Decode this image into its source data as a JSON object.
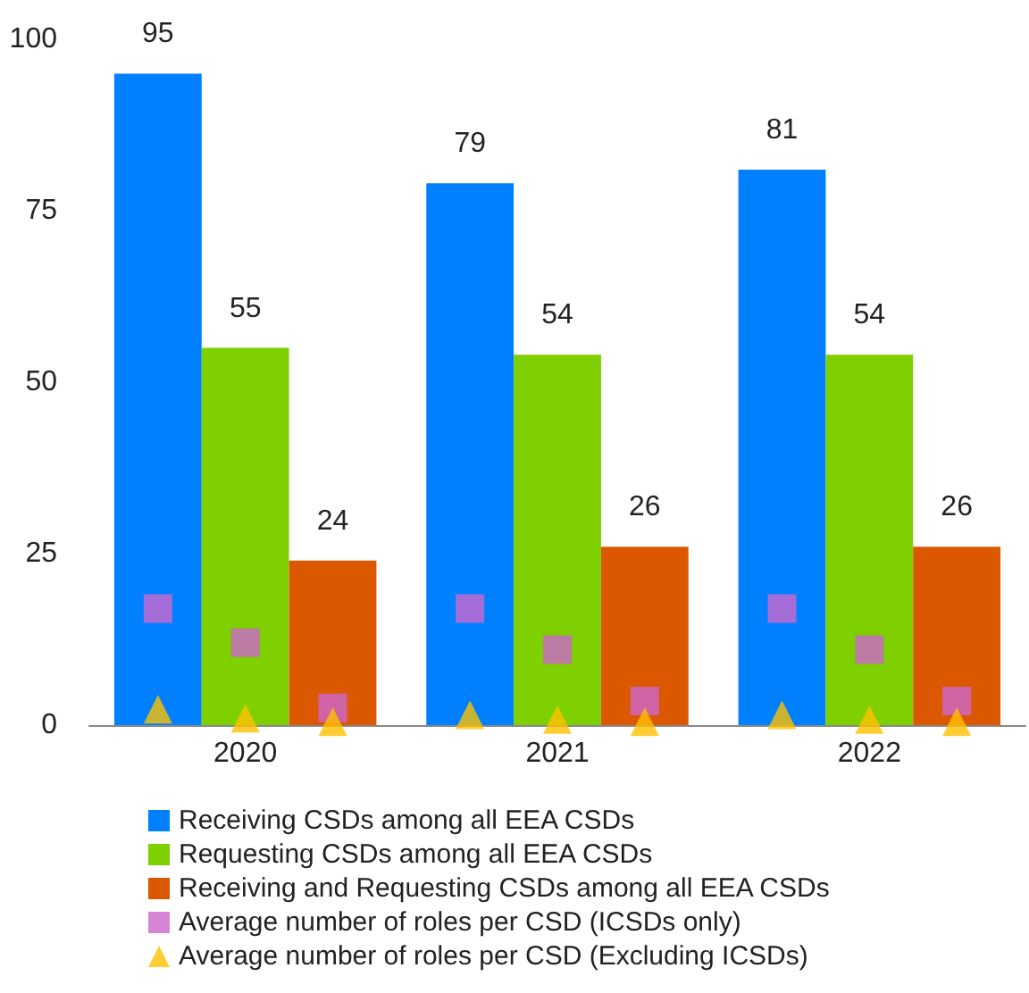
{
  "chart_data": {
    "type": "bar",
    "categories": [
      "2020",
      "2021",
      "2022"
    ],
    "series": [
      {
        "name": "Receiving CSDs among all EEA CSDs",
        "color": "#0080ff",
        "values": [
          95,
          79,
          81
        ],
        "value_labels": [
          "95",
          "79",
          "81"
        ]
      },
      {
        "name": "Requesting CSDs among all EEA CSDs",
        "color": "#7ed000",
        "values": [
          55,
          54,
          54
        ],
        "value_labels": [
          "55",
          "54",
          "54"
        ]
      },
      {
        "name": "Receiving and Requesting CSDs among all EEA CSDs",
        "color": "#dc5800",
        "values": [
          24,
          26,
          26
        ],
        "value_labels": [
          "24",
          "26",
          "26"
        ]
      },
      {
        "name": "Average number of roles per CSD (ICSDs only)",
        "type": "scatter",
        "marker": "square",
        "color": "#cc66cc",
        "values": [
          17,
          17,
          17
        ]
      },
      {
        "type": "scatter",
        "marker": "square",
        "color": "#cc66cc",
        "values": [
          12,
          11,
          11
        ]
      },
      {
        "type": "scatter",
        "marker": "square",
        "color": "#cc66cc",
        "values": [
          2.5,
          3.5,
          3.5
        ]
      },
      {
        "name": "Average number of roles per CSD (Excluding ICSDs)",
        "type": "scatter",
        "marker": "triangle",
        "color": "#ffc000",
        "values": [
          2.3,
          1.5,
          1.5
        ]
      },
      {
        "type": "scatter",
        "marker": "triangle",
        "color": "#ffc000",
        "values": [
          1,
          0.8,
          0.8
        ]
      },
      {
        "type": "scatter",
        "marker": "triangle",
        "color": "#ffc000",
        "values": [
          0.5,
          0.5,
          0.5
        ]
      }
    ],
    "ylim": [
      0,
      100
    ],
    "yticks": [
      0,
      25,
      50,
      75,
      100
    ],
    "grid": false,
    "legend": "bottom"
  }
}
